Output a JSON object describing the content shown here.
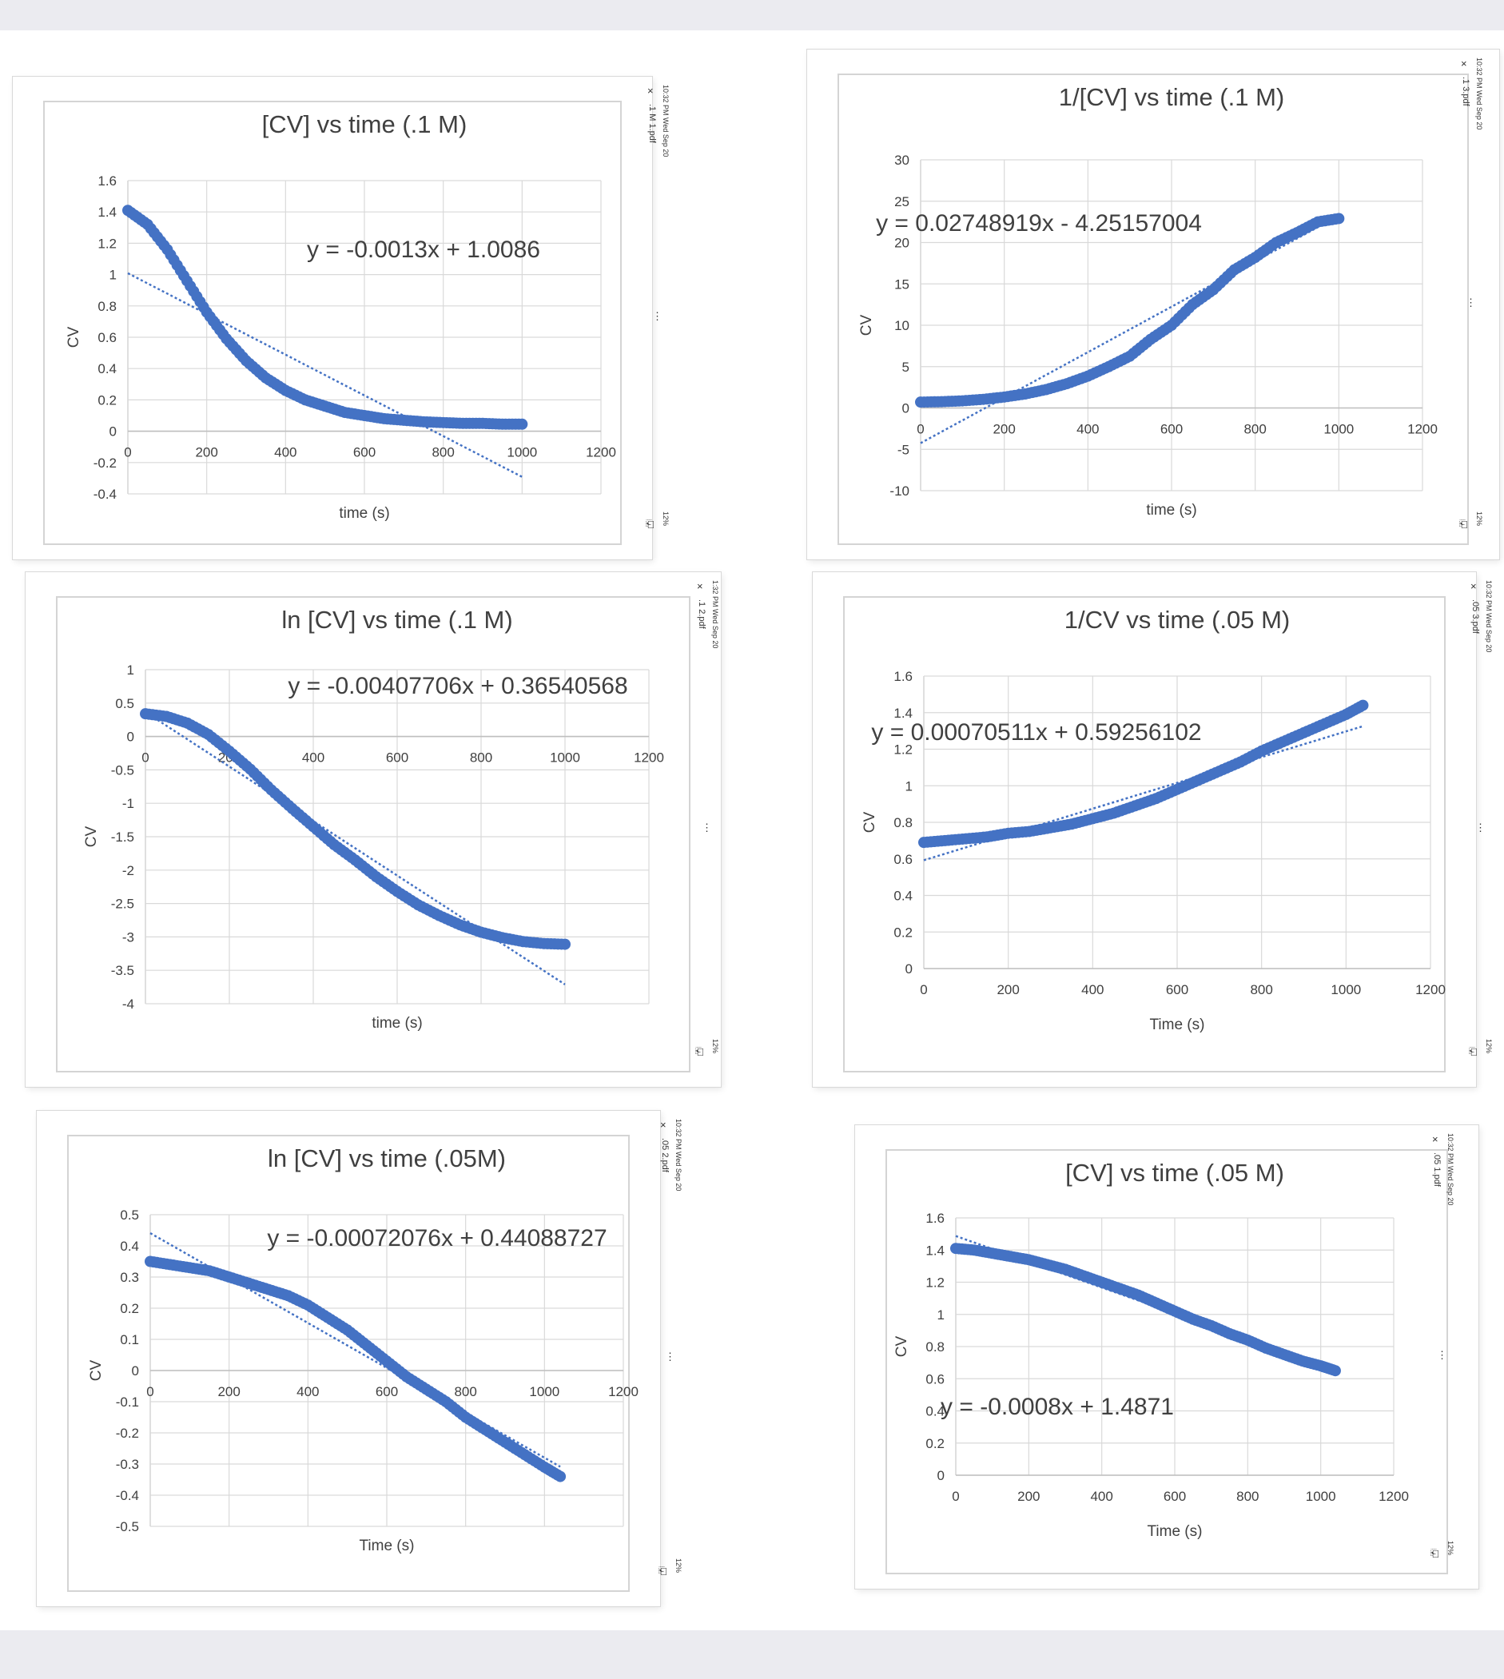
{
  "colors": {
    "series": "#4472c4",
    "trend": "#4472c4",
    "grid": "#d9d9d9",
    "text": "#404040"
  },
  "panels": [
    {
      "file": ".1 M 1.pdf",
      "stamp": "10:32 PM  Wed Sep 20",
      "zoom": "12%"
    },
    {
      "file": ".1 3.pdf",
      "stamp": "10:32 PM  Wed Sep 20",
      "zoom": "12%"
    },
    {
      "file": ".1 2.pdf",
      "stamp": "1:32 PM  Wed Sep 20",
      "zoom": "12%"
    },
    {
      "file": ".05 3.pdf",
      "stamp": "10:32 PM  Wed Sep 20",
      "zoom": "12%"
    },
    {
      "file": ".05 2.pdf",
      "stamp": "10:32 PM  Wed Sep 20",
      "zoom": "12%"
    },
    {
      "file": ".05 1.pdf",
      "stamp": "10:32 PM  Wed Sep 20",
      "zoom": "12%"
    }
  ],
  "chart_data": [
    {
      "type": "scatter",
      "title": "[CV] vs time (.1 M)",
      "xlabel": "time (s)",
      "ylabel": "CV",
      "xlim": [
        0,
        1200
      ],
      "ylim": [
        -0.4,
        1.6
      ],
      "xticks": [
        "0",
        "200",
        "400",
        "600",
        "800",
        "1000",
        "1200"
      ],
      "yticks": [
        "1.6",
        "1.4",
        "1.2",
        "1",
        "0.8",
        "0.6",
        "0.4",
        "0.2",
        "0",
        "-0.2",
        "-0.4"
      ],
      "x_axis_at_zero": true,
      "series": [
        {
          "x": [
            0,
            50,
            100,
            150,
            200,
            250,
            300,
            350,
            400,
            450,
            500,
            550,
            600,
            650,
            700,
            750,
            800,
            850,
            900,
            950,
            1000
          ],
          "y": [
            1.41,
            1.32,
            1.16,
            0.96,
            0.76,
            0.59,
            0.45,
            0.34,
            0.26,
            0.2,
            0.16,
            0.12,
            0.1,
            0.08,
            0.07,
            0.06,
            0.055,
            0.05,
            0.05,
            0.045,
            0.045
          ]
        }
      ],
      "trendline": {
        "slope": -0.0013,
        "intercept": 1.0086,
        "x_range": [
          0,
          1000
        ]
      },
      "equation": "y = -0.0013x + 1.0086",
      "grid": true
    },
    {
      "type": "scatter",
      "title": "1/[CV] vs time (.1 M)",
      "xlabel": "time (s)",
      "ylabel": "CV",
      "xlim": [
        0,
        1200
      ],
      "ylim": [
        -10,
        30
      ],
      "xticks": [
        "0",
        "200",
        "400",
        "600",
        "800",
        "1000",
        "1200"
      ],
      "yticks": [
        "30",
        "25",
        "20",
        "15",
        "10",
        "5",
        "0",
        "-5",
        "-10"
      ],
      "x_axis_at_zero": true,
      "series": [
        {
          "x": [
            0,
            50,
            100,
            150,
            200,
            250,
            300,
            350,
            400,
            450,
            500,
            550,
            600,
            650,
            700,
            750,
            800,
            850,
            900,
            950,
            1000
          ],
          "y": [
            0.71,
            0.76,
            0.86,
            1.04,
            1.32,
            1.69,
            2.22,
            2.94,
            3.85,
            5.0,
            6.25,
            8.3,
            10.0,
            12.5,
            14.3,
            16.7,
            18.2,
            20.0,
            21.2,
            22.5,
            22.9
          ]
        }
      ],
      "trendline": {
        "slope": 0.02748919,
        "intercept": -4.25157004,
        "x_range": [
          0,
          1000
        ]
      },
      "equation": "y = 0.02748919x - 4.25157004",
      "grid": true
    },
    {
      "type": "scatter",
      "title": "ln [CV] vs time (.1 M)",
      "xlabel": "time (s)",
      "ylabel": "CV",
      "xlim": [
        0,
        1200
      ],
      "ylim": [
        -4,
        1
      ],
      "xticks": [
        "0",
        "200",
        "400",
        "600",
        "800",
        "1000",
        "1200"
      ],
      "yticks": [
        "1",
        "0.5",
        "0",
        "-0.5",
        "-1",
        "-1.5",
        "-2",
        "-2.5",
        "-3",
        "-3.5",
        "-4"
      ],
      "x_axis_at_zero": true,
      "series": [
        {
          "x": [
            0,
            50,
            100,
            150,
            200,
            250,
            300,
            350,
            400,
            450,
            500,
            550,
            600,
            650,
            700,
            750,
            800,
            850,
            900,
            950,
            1000
          ],
          "y": [
            0.34,
            0.3,
            0.2,
            0.03,
            -0.22,
            -0.49,
            -0.8,
            -1.08,
            -1.35,
            -1.62,
            -1.85,
            -2.1,
            -2.32,
            -2.52,
            -2.68,
            -2.82,
            -2.93,
            -3.01,
            -3.07,
            -3.1,
            -3.11
          ]
        }
      ],
      "trendline": {
        "slope": -0.00407706,
        "intercept": 0.36540568,
        "x_range": [
          0,
          1000
        ]
      },
      "equation": "y = -0.00407706x + 0.36540568",
      "grid": true
    },
    {
      "type": "scatter",
      "title": "1/CV vs time (.05 M)",
      "xlabel": "Time (s)",
      "ylabel": "CV",
      "xlim": [
        0,
        1200
      ],
      "ylim": [
        0,
        1.6
      ],
      "xticks": [
        "0",
        "200",
        "400",
        "600",
        "800",
        "1000",
        "1200"
      ],
      "yticks": [
        "1.6",
        "1.4",
        "1.2",
        "1",
        "0.8",
        "0.6",
        "0.4",
        "0.2",
        "0"
      ],
      "x_axis_at_zero": false,
      "series": [
        {
          "x": [
            0,
            50,
            100,
            150,
            200,
            250,
            300,
            350,
            400,
            450,
            500,
            550,
            600,
            650,
            700,
            750,
            800,
            850,
            900,
            950,
            1000,
            1040
          ],
          "y": [
            0.69,
            0.7,
            0.71,
            0.72,
            0.74,
            0.75,
            0.77,
            0.79,
            0.82,
            0.85,
            0.89,
            0.93,
            0.98,
            1.03,
            1.08,
            1.13,
            1.19,
            1.24,
            1.29,
            1.34,
            1.39,
            1.44
          ]
        }
      ],
      "trendline": {
        "slope": 0.00070511,
        "intercept": 0.59256102,
        "x_range": [
          0,
          1040
        ]
      },
      "equation": "y = 0.00070511x + 0.59256102",
      "grid": true
    },
    {
      "type": "scatter",
      "title": "ln [CV] vs time (.05M)",
      "xlabel": "Time (s)",
      "ylabel": "CV",
      "xlim": [
        0,
        1200
      ],
      "ylim": [
        -0.5,
        0.5
      ],
      "xticks": [
        "0",
        "200",
        "400",
        "600",
        "800",
        "1000",
        "1200"
      ],
      "yticks": [
        "0.5",
        "0.4",
        "0.3",
        "0.2",
        "0.1",
        "0",
        "-0.1",
        "-0.2",
        "-0.3",
        "-0.4",
        "-0.5"
      ],
      "x_axis_at_zero": true,
      "series": [
        {
          "x": [
            0,
            50,
            100,
            150,
            200,
            250,
            300,
            350,
            400,
            450,
            500,
            550,
            600,
            650,
            700,
            750,
            800,
            850,
            900,
            950,
            1000,
            1040
          ],
          "y": [
            0.35,
            0.34,
            0.33,
            0.32,
            0.3,
            0.28,
            0.26,
            0.24,
            0.21,
            0.17,
            0.13,
            0.08,
            0.03,
            -0.02,
            -0.06,
            -0.1,
            -0.15,
            -0.19,
            -0.23,
            -0.27,
            -0.31,
            -0.34
          ]
        }
      ],
      "trendline": {
        "slope": -0.00072076,
        "intercept": 0.44088727,
        "x_range": [
          0,
          1040
        ]
      },
      "equation": "y = -0.00072076x + 0.44088727",
      "grid": true
    },
    {
      "type": "scatter",
      "title": "[CV] vs time (.05 M)",
      "xlabel": "Time (s)",
      "ylabel": "CV",
      "xlim": [
        0,
        1200
      ],
      "ylim": [
        0,
        1.6
      ],
      "xticks": [
        "0",
        "200",
        "400",
        "600",
        "800",
        "1000",
        "1200"
      ],
      "yticks": [
        "1.6",
        "1.4",
        "1.2",
        "1",
        "0.8",
        "0.6",
        "0.4",
        "0.2",
        "0"
      ],
      "x_axis_at_zero": false,
      "series": [
        {
          "x": [
            0,
            50,
            100,
            150,
            200,
            250,
            300,
            350,
            400,
            450,
            500,
            550,
            600,
            650,
            700,
            750,
            800,
            850,
            900,
            950,
            1000,
            1040
          ],
          "y": [
            1.41,
            1.4,
            1.38,
            1.36,
            1.34,
            1.31,
            1.28,
            1.24,
            1.2,
            1.16,
            1.12,
            1.07,
            1.02,
            0.97,
            0.93,
            0.88,
            0.84,
            0.79,
            0.75,
            0.71,
            0.68,
            0.65
          ]
        }
      ],
      "trendline": {
        "slope": -0.0008,
        "intercept": 1.4871,
        "x_range": [
          0,
          1040
        ]
      },
      "equation": "y = -0.0008x + 1.4871",
      "grid": true
    }
  ]
}
